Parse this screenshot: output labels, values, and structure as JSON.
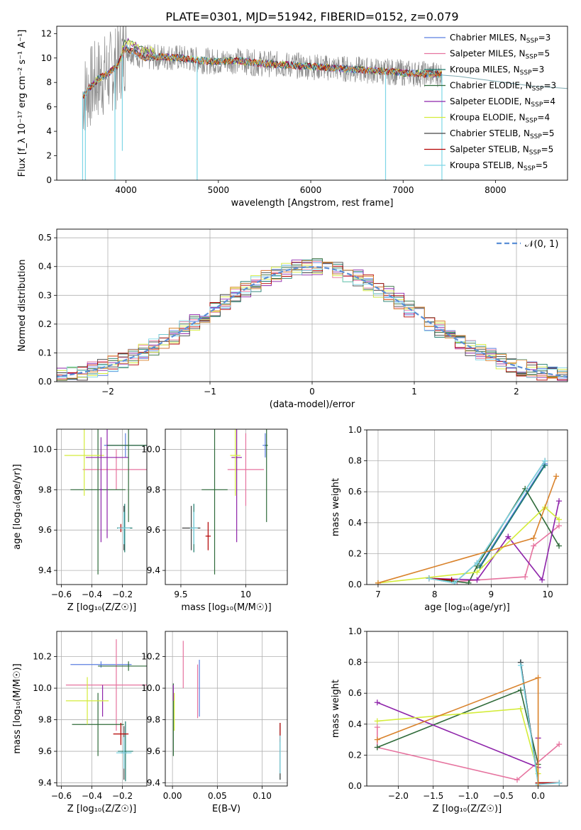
{
  "figure_title": "PLATE=0301, MJD=51942, FIBERID=0152, z=0.079",
  "colors": {
    "Chabrier MILES": "#5b7fe0",
    "Salpeter MILES": "#e6739f",
    "Kroupa MILES": "#1b7a6b",
    "Chabrier ELODIE": "#2f6b3a",
    "Salpeter ELODIE": "#8e24aa",
    "Kroupa ELODIE": "#d4ec3a",
    "Chabrier STELIB": "#444444",
    "Salpeter STELIB": "#b30000",
    "Kroupa STELIB": "#7ed6e6",
    "normal_curve": "#5b8fd6",
    "grid": "#b0b0b0"
  },
  "chart_data": [
    {
      "id": "spectrum",
      "type": "line",
      "xlabel": "wavelength [Angstrom, rest frame]",
      "ylabel": "Flux [f_λ 10⁻¹⁷ erg cm⁻² s⁻¹ A⁻¹]",
      "xlim": [
        3250,
        8780
      ],
      "ylim": [
        0,
        12.6
      ],
      "xticks": [
        4000,
        5000,
        6000,
        7000,
        8000
      ],
      "yticks": [
        0,
        2,
        4,
        6,
        8,
        10,
        12
      ],
      "grid": false,
      "legend_position": "upper right",
      "legend": [
        {
          "label": "Chabrier MILES, N_SSP=3",
          "main": "Chabrier MILES, N",
          "sub": "SSP",
          "tail": "=3",
          "key": "Chabrier MILES"
        },
        {
          "label": "Salpeter MILES, N_SSP=5",
          "main": "Salpeter MILES, N",
          "sub": "SSP",
          "tail": "=5",
          "key": "Salpeter MILES"
        },
        {
          "label": "Kroupa MILES, N_SSP=3",
          "main": "Kroupa MILES, N",
          "sub": "SSP",
          "tail": "=3",
          "key": "Kroupa MILES"
        },
        {
          "label": "Chabrier ELODIE, N_SSP=3",
          "main": "Chabrier ELODIE, N",
          "sub": "SSP",
          "tail": "=3",
          "key": "Chabrier ELODIE"
        },
        {
          "label": "Salpeter ELODIE, N_SSP=4",
          "main": "Salpeter ELODIE, N",
          "sub": "SSP",
          "tail": "=4",
          "key": "Salpeter ELODIE"
        },
        {
          "label": "Kroupa ELODIE, N_SSP=4",
          "main": "Kroupa ELODIE, N",
          "sub": "SSP",
          "tail": "=4",
          "key": "Kroupa ELODIE"
        },
        {
          "label": "Chabrier STELIB, N_SSP=5",
          "main": "Chabrier STELIB, N",
          "sub": "SSP",
          "tail": "=5",
          "key": "Chabrier STELIB"
        },
        {
          "label": "Salpeter STELIB, N_SSP=5",
          "main": "Salpeter STELIB, N",
          "sub": "SSP",
          "tail": "=5",
          "key": "Salpeter STELIB"
        },
        {
          "label": "Kroupa STELIB, N_SSP=5",
          "main": "Kroupa STELIB, N",
          "sub": "SSP",
          "tail": "=5",
          "key": "Kroupa STELIB"
        }
      ],
      "data_envelope": {
        "x": [
          3530,
          3600,
          3700,
          3800,
          3900,
          4000,
          4100,
          4200,
          4400,
          4600,
          4800,
          5000,
          5200,
          5400,
          5600,
          5800,
          6000,
          6200,
          6400,
          6600,
          6800,
          7000,
          7200,
          7400
        ],
        "y": [
          6.8,
          7.5,
          8.3,
          8.7,
          9.3,
          10.8,
          10.4,
          10.0,
          10.1,
          10.0,
          9.8,
          9.7,
          9.8,
          9.6,
          9.5,
          9.4,
          9.3,
          9.2,
          9.1,
          9.0,
          8.9,
          8.8,
          8.7,
          8.7
        ]
      },
      "model_segment_x": [
        3530,
        7420
      ],
      "model_tail": {
        "x": [
          7420,
          7600,
          7800,
          8000,
          8200,
          8400,
          8600,
          8780
        ],
        "y": [
          8.6,
          8.5,
          8.3,
          8.1,
          7.9,
          7.7,
          7.6,
          7.5
        ]
      }
    },
    {
      "id": "residuals",
      "type": "line",
      "xlabel": "(data-model)/error",
      "ylabel": "Normed distribution",
      "xlim": [
        -2.5,
        2.5
      ],
      "ylim": [
        0,
        0.53
      ],
      "xticks": [
        -2,
        -1,
        0,
        1,
        2
      ],
      "yticks": [
        0.0,
        0.1,
        0.2,
        0.3,
        0.4,
        0.5
      ],
      "grid": true,
      "legend_position": "upper right",
      "legend": [
        {
          "label": "𝒩(0, 1)",
          "key": "normal_curve"
        }
      ],
      "bin_width": 0.1,
      "series_hist": "approximately normal step histograms, one per model, peak ~0.41-0.50 near 0"
    },
    {
      "id": "age_vs_Z",
      "type": "scatter",
      "xlabel": "Z [log₁₀(Z/Z☉)]",
      "ylabel": "age  [log₁₀(age/yr)]",
      "xlim": [
        -0.63,
        -0.04
      ],
      "ylim": [
        9.33,
        10.1
      ],
      "xticks": [
        -0.6,
        -0.4,
        -0.2
      ],
      "yticks": [
        9.4,
        9.6,
        9.8,
        10.0
      ],
      "grid": true,
      "points": [
        {
          "key": "Chabrier MILES",
          "x": -0.18,
          "y": 10.02,
          "xerr": 0.14,
          "yerr": 0.06
        },
        {
          "key": "Salpeter MILES",
          "x": -0.24,
          "y": 9.9,
          "xerr": 0.22,
          "yerr": 0.1
        },
        {
          "key": "Kroupa MILES",
          "x": -0.185,
          "y": 9.61,
          "xerr": 0.05,
          "yerr": 0.12
        },
        {
          "key": "Chabrier ELODIE",
          "x": -0.36,
          "y": 9.8,
          "xerr": 0.18,
          "yerr": 0.42
        },
        {
          "key": "Salpeter ELODIE",
          "x": -0.3,
          "y": 9.96,
          "xerr": 0.14,
          "yerr": 0.4
        },
        {
          "key": "Kroupa ELODIE",
          "x": -0.45,
          "y": 9.97,
          "xerr": 0.13,
          "yerr": 0.2
        },
        {
          "key": "Chabrier STELIB",
          "x": -0.19,
          "y": 9.61,
          "xerr": 0.04,
          "yerr": 0.11
        },
        {
          "key": "Salpeter STELIB",
          "x": -0.21,
          "y": 9.61,
          "xerr": 0.01,
          "yerr": 0.02
        },
        {
          "key": "Kroupa STELIB",
          "x": -0.19,
          "y": 9.61,
          "xerr": 0.04,
          "yerr": 0.08
        }
      ],
      "extra_points": [
        {
          "key": "Salpeter ELODIE",
          "x": -0.34,
          "y": 9.8,
          "xerr": 0.01,
          "yerr": 0.26
        },
        {
          "key": "Chabrier ELODIE",
          "x": -0.16,
          "y": 10.02,
          "xerr": 0.14,
          "yerr": 0.38
        }
      ]
    },
    {
      "id": "age_vs_mass",
      "type": "scatter",
      "xlabel": "mass [log₁₀(M/M☉)]",
      "ylabel": "",
      "xlim": [
        9.38,
        10.32
      ],
      "ylim": [
        9.33,
        10.1
      ],
      "xticks": [
        9.5,
        10.0
      ],
      "yticks": [
        9.4,
        9.6,
        9.8,
        10.0
      ],
      "grid": true,
      "points": [
        {
          "key": "Chabrier MILES",
          "x": 10.15,
          "y": 10.02,
          "xerr": 0.02,
          "yerr": 0.06
        },
        {
          "key": "Salpeter MILES",
          "x": 10.0,
          "y": 9.9,
          "xerr": 0.14,
          "yerr": 0.18
        },
        {
          "key": "Kroupa MILES",
          "x": 9.6,
          "y": 9.61,
          "xerr": 0.02,
          "yerr": 0.12
        },
        {
          "key": "Chabrier ELODIE",
          "x": 9.76,
          "y": 9.8,
          "xerr": 0.1,
          "yerr": 0.42
        },
        {
          "key": "Salpeter ELODIE",
          "x": 9.93,
          "y": 9.96,
          "xerr": 0.04,
          "yerr": 0.42
        },
        {
          "key": "Kroupa ELODIE",
          "x": 9.92,
          "y": 9.97,
          "xerr": 0.04,
          "yerr": 0.2
        },
        {
          "key": "Chabrier STELIB",
          "x": 9.58,
          "y": 9.61,
          "xerr": 0.07,
          "yerr": 0.11
        },
        {
          "key": "Salpeter STELIB",
          "x": 9.71,
          "y": 9.57,
          "xerr": 0.02,
          "yerr": 0.07
        },
        {
          "key": "Kroupa STELIB",
          "x": 9.6,
          "y": 9.61,
          "xerr": 0.03,
          "yerr": 0.08
        }
      ],
      "extra_points": [
        {
          "key": "Chabrier ELODIE",
          "x": 10.16,
          "y": 10.02,
          "xerr": 0.01,
          "yerr": 0.38
        }
      ]
    },
    {
      "id": "weight_vs_age",
      "type": "line",
      "xlabel": "age  [log₁₀(age/yr)]",
      "ylabel": "mass weight",
      "xlim": [
        6.8,
        10.35
      ],
      "ylim": [
        0,
        1.0
      ],
      "xticks": [
        7,
        8,
        9,
        10
      ],
      "yticks": [
        0.0,
        0.2,
        0.4,
        0.6,
        0.8,
        1.0
      ],
      "grid": true,
      "series": [
        {
          "key": "Chabrier MILES",
          "x": [
            8.8,
            9.95
          ],
          "y": [
            0.12,
            0.78
          ]
        },
        {
          "key": "Salpeter MILES",
          "x": [
            8.4,
            9.6,
            9.75,
            10.2
          ],
          "y": [
            0.02,
            0.05,
            0.25,
            0.38
          ]
        },
        {
          "key": "Kroupa MILES",
          "x": [
            8.8,
            9.95
          ],
          "y": [
            0.11,
            0.77
          ]
        },
        {
          "key": "Chabrier ELODIE",
          "x": [
            7.9,
            8.6,
            8.75,
            9.6,
            10.2
          ],
          "y": [
            0.04,
            0.01,
            0.12,
            0.62,
            0.25
          ]
        },
        {
          "key": "Salpeter ELODIE",
          "x": [
            7.9,
            8.75,
            9.3,
            9.9,
            10.2
          ],
          "y": [
            0.04,
            0.03,
            0.31,
            0.03,
            0.54
          ]
        },
        {
          "key": "Kroupa ELODIE",
          "x": [
            7.0,
            8.75,
            9.95,
            10.2
          ],
          "y": [
            0.01,
            0.08,
            0.5,
            0.42
          ]
        },
        {
          "key": "Chabrier STELIB",
          "x": [
            7.9,
            8.35,
            8.75,
            9.95
          ],
          "y": [
            0.04,
            0.01,
            0.14,
            0.8
          ]
        },
        {
          "key": "Salpeter STELIB",
          "x": [
            7.9,
            8.3
          ],
          "y": [
            0.04,
            0.03
          ]
        },
        {
          "key": "Kroupa STELIB",
          "x": [
            7.9,
            8.35,
            8.75,
            9.95
          ],
          "y": [
            0.04,
            0.01,
            0.14,
            0.8
          ]
        },
        {
          "key": "Salpeter STELIB (orange)",
          "color": "#d9822b",
          "x": [
            7.0,
            9.75,
            10.15
          ],
          "y": [
            0.01,
            0.3,
            0.7
          ]
        }
      ]
    },
    {
      "id": "mass_vs_Z",
      "type": "scatter",
      "xlabel": "Z [log₁₀(Z/Z☉)]",
      "ylabel": "mass [log₁₀(M/M☉)]",
      "xlim": [
        -0.63,
        -0.04
      ],
      "ylim": [
        9.38,
        10.36
      ],
      "xticks": [
        -0.6,
        -0.4,
        -0.2
      ],
      "yticks": [
        9.4,
        9.6,
        9.8,
        10.0,
        10.2
      ],
      "grid": true,
      "points": [
        {
          "key": "Chabrier MILES",
          "x": -0.34,
          "y": 10.15,
          "xerr": 0.2,
          "yerr": 0.02
        },
        {
          "key": "Salpeter MILES",
          "x": -0.24,
          "y": 10.02,
          "xerr": 0.33,
          "yerr": 0.29
        },
        {
          "key": "Kroupa MILES",
          "x": -0.18,
          "y": 9.6,
          "xerr": 0.05,
          "yerr": 0.19
        },
        {
          "key": "Chabrier ELODIE",
          "x": -0.36,
          "y": 9.77,
          "xerr": 0.17,
          "yerr": 0.2
        },
        {
          "key": "Salpeter ELODIE",
          "x": -0.33,
          "y": 9.92,
          "xerr": 0.0,
          "yerr": 0.1
        },
        {
          "key": "Kroupa ELODIE",
          "x": -0.43,
          "y": 9.92,
          "xerr": 0.14,
          "yerr": 0.15
        },
        {
          "key": "Chabrier STELIB",
          "x": -0.19,
          "y": 9.59,
          "xerr": 0.02,
          "yerr": 0.17
        },
        {
          "key": "Salpeter STELIB",
          "x": -0.21,
          "y": 9.71,
          "xerr": 0.05,
          "yerr": 0.07
        },
        {
          "key": "Kroupa STELIB",
          "x": -0.19,
          "y": 9.59,
          "xerr": 0.05,
          "yerr": 0.1
        }
      ],
      "extra_points": [
        {
          "key": "Chabrier ELODIE",
          "x": -0.16,
          "y": 10.14,
          "xerr": 0.2,
          "yerr": 0.03
        }
      ]
    },
    {
      "id": "mass_vs_ebv",
      "type": "scatter",
      "xlabel": "E(B-V)",
      "ylabel": "",
      "xlim": [
        -0.008,
        0.128
      ],
      "ylim": [
        9.38,
        10.36
      ],
      "xticks": [
        0.0,
        0.05,
        0.1
      ],
      "xticklabels": [
        "0.00",
        "0.05",
        "0.10"
      ],
      "yticks": [
        9.4,
        9.6,
        9.8,
        10.0,
        10.2
      ],
      "grid": true,
      "points": [
        {
          "key": "Chabrier MILES",
          "x": 0.03,
          "y": 10.0,
          "xerr": 0.0,
          "yerr": 0.18
        },
        {
          "key": "Salpeter MILES",
          "x": 0.012,
          "y": 10.15,
          "xerr": 0.0,
          "yerr": 0.15
        },
        {
          "key": "Kroupa MILES",
          "x": 0.12,
          "y": 9.55,
          "xerr": 0.0,
          "yerr": 0.13
        },
        {
          "key": "Chabrier ELODIE",
          "x": 0.001,
          "y": 9.8,
          "xerr": 0.0,
          "yerr": 0.23
        },
        {
          "key": "Salpeter ELODIE",
          "x": 0.001,
          "y": 9.97,
          "xerr": 0.0,
          "yerr": 0.05
        },
        {
          "key": "Kroupa ELODIE",
          "x": 0.002,
          "y": 9.85,
          "xerr": 0.0,
          "yerr": 0.12
        },
        {
          "key": "Chabrier STELIB",
          "x": 0.12,
          "y": 9.6,
          "xerr": 0.0,
          "yerr": 0.18
        },
        {
          "key": "Salpeter STELIB",
          "x": 0.12,
          "y": 9.72,
          "xerr": 0.0,
          "yerr": 0.06
        },
        {
          "key": "Kroupa STELIB",
          "x": 0.12,
          "y": 9.58,
          "xerr": 0.0,
          "yerr": 0.12
        }
      ],
      "extra_points": [
        {
          "key": "Salpeter MILES",
          "x": 0.028,
          "y": 9.98,
          "xerr": 0.0,
          "yerr": 0.17
        }
      ]
    },
    {
      "id": "weight_vs_Z",
      "type": "line",
      "xlabel": "Z [log₁₀(Z/Z☉)]",
      "ylabel": "mass weight",
      "xlim": [
        -2.45,
        0.42
      ],
      "ylim": [
        0,
        1.0
      ],
      "xticks": [
        -2.0,
        -1.5,
        -1.0,
        -0.5,
        0.0
      ],
      "xticklabels": [
        "−2.0",
        "−1.5",
        "−1.0",
        "−0.5",
        "0.0"
      ],
      "yticks": [
        0.0,
        0.2,
        0.4,
        0.6,
        0.8,
        1.0
      ],
      "grid": true,
      "series": [
        {
          "key": "Chabrier MILES",
          "x": [
            -0.25,
            0.0
          ],
          "y": [
            0.8,
            0.02
          ]
        },
        {
          "key": "Salpeter MILES",
          "x": [
            -2.3,
            -2.3,
            -0.3,
            0.3
          ],
          "y": [
            0.38,
            0.25,
            0.04,
            0.27
          ]
        },
        {
          "key": "Kroupa MILES",
          "x": [
            -0.25,
            0.0
          ],
          "y": [
            0.8,
            0.02
          ]
        },
        {
          "key": "Chabrier ELODIE",
          "x": [
            -2.3,
            -0.25,
            0.0
          ],
          "y": [
            0.25,
            0.62,
            0.14
          ]
        },
        {
          "key": "Salpeter ELODIE",
          "x": [
            -2.3,
            0.0,
            0.0
          ],
          "y": [
            0.54,
            0.12,
            0.31
          ]
        },
        {
          "key": "Kroupa ELODIE",
          "x": [
            -2.3,
            -0.25,
            0.0
          ],
          "y": [
            0.42,
            0.5,
            0.08
          ]
        },
        {
          "key": "Chabrier STELIB",
          "x": [
            -0.25,
            0.0,
            0.3
          ],
          "y": [
            0.8,
            0.02,
            0.02
          ]
        },
        {
          "key": "Salpeter STELIB",
          "x": [
            0.0,
            0.3
          ],
          "y": [
            0.02,
            0.02
          ]
        },
        {
          "key": "Kroupa STELIB",
          "x": [
            -0.25,
            0.0,
            0.3
          ],
          "y": [
            0.78,
            0.01,
            0.02
          ]
        },
        {
          "key": "Salpeter STELIB (orange)",
          "color": "#d9822b",
          "x": [
            -2.3,
            0.0,
            0.0
          ],
          "y": [
            0.3,
            0.7,
            0.0
          ]
        }
      ]
    }
  ]
}
